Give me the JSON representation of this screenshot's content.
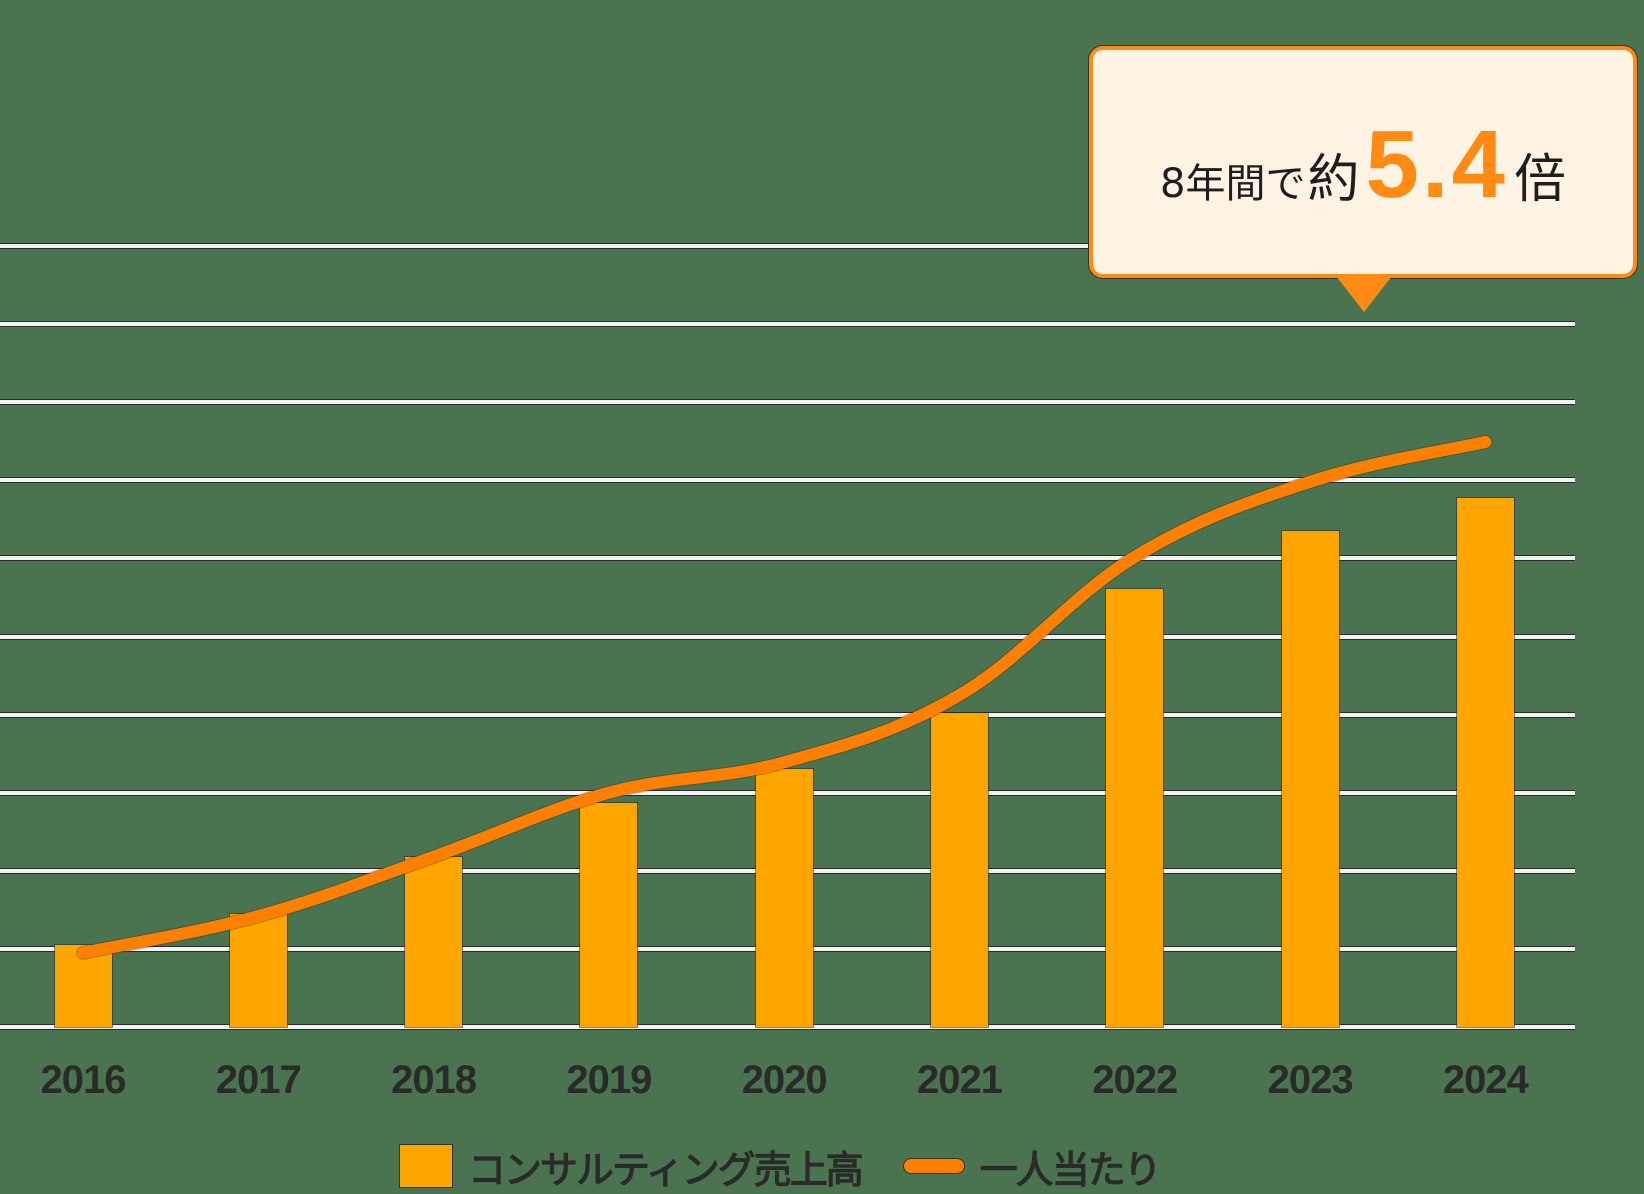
{
  "callout": {
    "prefix": "8年間で",
    "approx": "約",
    "value": "5.4",
    "suffix": "倍",
    "accent_color": "#ff8a14"
  },
  "legend": {
    "items": [
      {
        "label": "コンサルティング売上高",
        "type": "bar",
        "color": "#ffa500"
      },
      {
        "label": "一人当たり",
        "type": "line",
        "color": "#ff8000"
      }
    ]
  },
  "colors": {
    "background": "#4a7350",
    "bar": "#ffa500",
    "line": "#ff8000",
    "gridline": "#f2f2f2"
  },
  "chart_data": {
    "type": "bar",
    "title": "",
    "annotation": "8年間で約5.4倍",
    "xlabel": "",
    "ylabel": "",
    "categories": [
      "2016",
      "2017",
      "2018",
      "2019",
      "2020",
      "2021",
      "2022",
      "2023",
      "2024"
    ],
    "series": [
      {
        "name": "コンサルティング売上高",
        "type": "bar",
        "values": [
          1.05,
          1.45,
          2.18,
          2.87,
          3.3,
          4.02,
          5.61,
          6.35,
          6.77
        ]
      },
      {
        "name": "一人当たり",
        "type": "line",
        "values": [
          0.95,
          1.42,
          2.18,
          3.0,
          3.39,
          4.25,
          6.02,
          6.98,
          7.49
        ]
      }
    ],
    "ylim": [
      0,
      10
    ],
    "y_units": "gridline units (no numeric y-axis labels shown)",
    "grid": true,
    "gridline_count": 10,
    "legend_position": "bottom"
  }
}
